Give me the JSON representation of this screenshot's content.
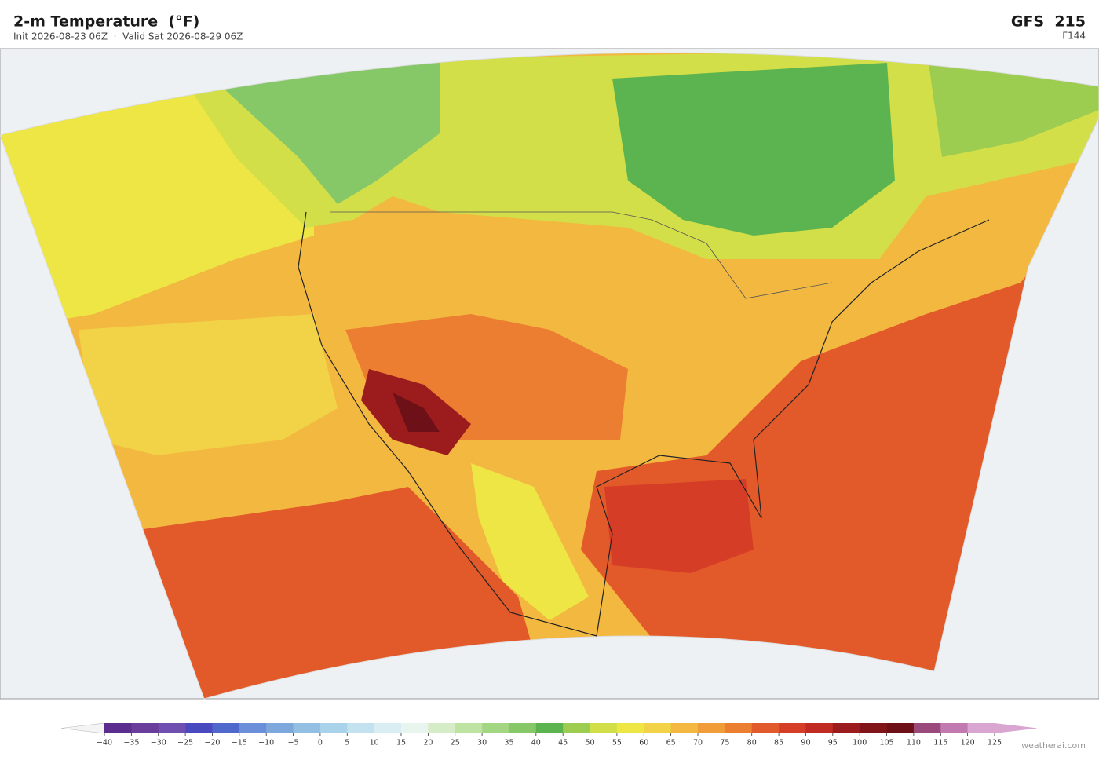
{
  "header": {
    "title": "2-m Temperature  (°F)",
    "subtitle": "Init 2026-08-23 06Z  ·  Valid Sat 2026-08-29 06Z",
    "model": "GFS  215",
    "forecast_hour": "F144"
  },
  "colorbar": {
    "ticks": [
      {
        "value": -40,
        "label": "−40"
      },
      {
        "value": -35,
        "label": "−35"
      },
      {
        "value": -30,
        "label": "−30"
      },
      {
        "value": -25,
        "label": "−25"
      },
      {
        "value": -20,
        "label": "−20"
      },
      {
        "value": -15,
        "label": "−15"
      },
      {
        "value": -10,
        "label": "−10"
      },
      {
        "value": -5,
        "label": "−5"
      },
      0,
      5,
      10,
      15,
      20,
      25,
      30,
      35,
      40,
      45,
      50,
      55,
      60,
      65,
      70,
      75,
      80,
      85,
      90,
      95,
      100,
      105,
      110,
      115,
      120,
      125
    ],
    "colors": [
      "#5b2d8e",
      "#6a3d9a",
      "#6f4fb0",
      "#4a4ac0",
      "#5068cc",
      "#6a8ed8",
      "#7ea8dc",
      "#93c0e2",
      "#a9d3ea",
      "#c2e2ef",
      "#d8eef2",
      "#e8f5ef",
      "#d6ecc8",
      "#bfe3a3",
      "#a2d682",
      "#86c767",
      "#5cb450",
      "#9ccc50",
      "#d2df48",
      "#ede645",
      "#f2d246",
      "#f3b840",
      "#f09c38",
      "#ec7e32",
      "#e25a2a",
      "#d63d26",
      "#c12a22",
      "#9c1c1e",
      "#801418",
      "#6e1018",
      "#9a4a7a",
      "#c07ab0",
      "#d9a6d2"
    ],
    "under_color": "#f4f4f4",
    "over_color": "#d9a6d2"
  },
  "footer": {
    "credit": "weatherai.com"
  }
}
